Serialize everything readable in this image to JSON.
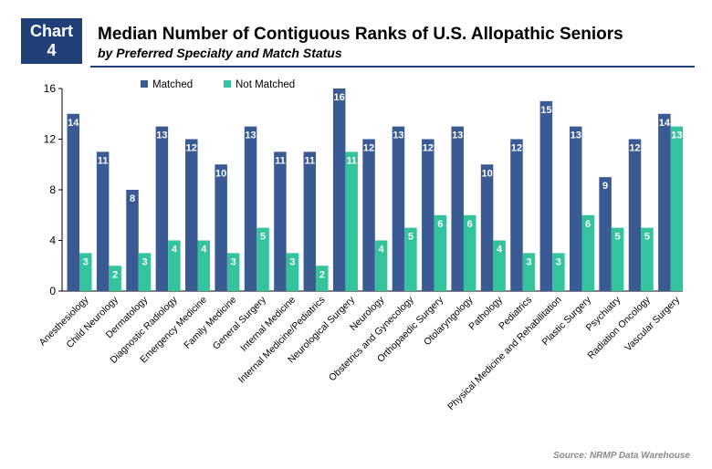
{
  "header": {
    "badge_line1": "Chart",
    "badge_line2": "4",
    "title": "Median Number of Contiguous Ranks of U.S. Allopathic Seniors",
    "subtitle": "by Preferred Specialty and Match Status"
  },
  "source": "Source: NRMP Data Warehouse",
  "colors": {
    "matched": "#3a5a94",
    "not_matched": "#33c39d"
  },
  "chart_data": {
    "type": "bar",
    "title": "",
    "xlabel": "",
    "ylabel": "",
    "ylim": [
      0,
      16
    ],
    "yticks": [
      0,
      4,
      8,
      12,
      16
    ],
    "grid": false,
    "legend_position": "top",
    "categories": [
      "Anesthesiology",
      "Child Neurology",
      "Dermatology",
      "Diagnostic Radiology",
      "Emergency Medicine",
      "Family Medicine",
      "General Surgery",
      "Internal Medicine",
      "Internal Medicine/Pediatrics",
      "Neurological Surgery",
      "Neurology",
      "Obstetrics and Gynecology",
      "Orthopaedic Surgery",
      "Otolaryngology",
      "Pathology",
      "Pediatrics",
      "Physical Medicine and Rehabilitation",
      "Plastic Surgery",
      "Psychiatry",
      "Radiation Oncology",
      "Vascular Surgery"
    ],
    "series": [
      {
        "name": "Matched",
        "values": [
          14,
          11,
          8,
          13,
          12,
          10,
          13,
          11,
          11,
          16,
          12,
          13,
          12,
          13,
          10,
          12,
          15,
          13,
          9,
          12,
          14
        ]
      },
      {
        "name": "Not Matched",
        "values": [
          3,
          2,
          3,
          4,
          4,
          3,
          5,
          3,
          2,
          11,
          4,
          5,
          6,
          6,
          4,
          3,
          3,
          6,
          5,
          5,
          13
        ]
      }
    ]
  }
}
